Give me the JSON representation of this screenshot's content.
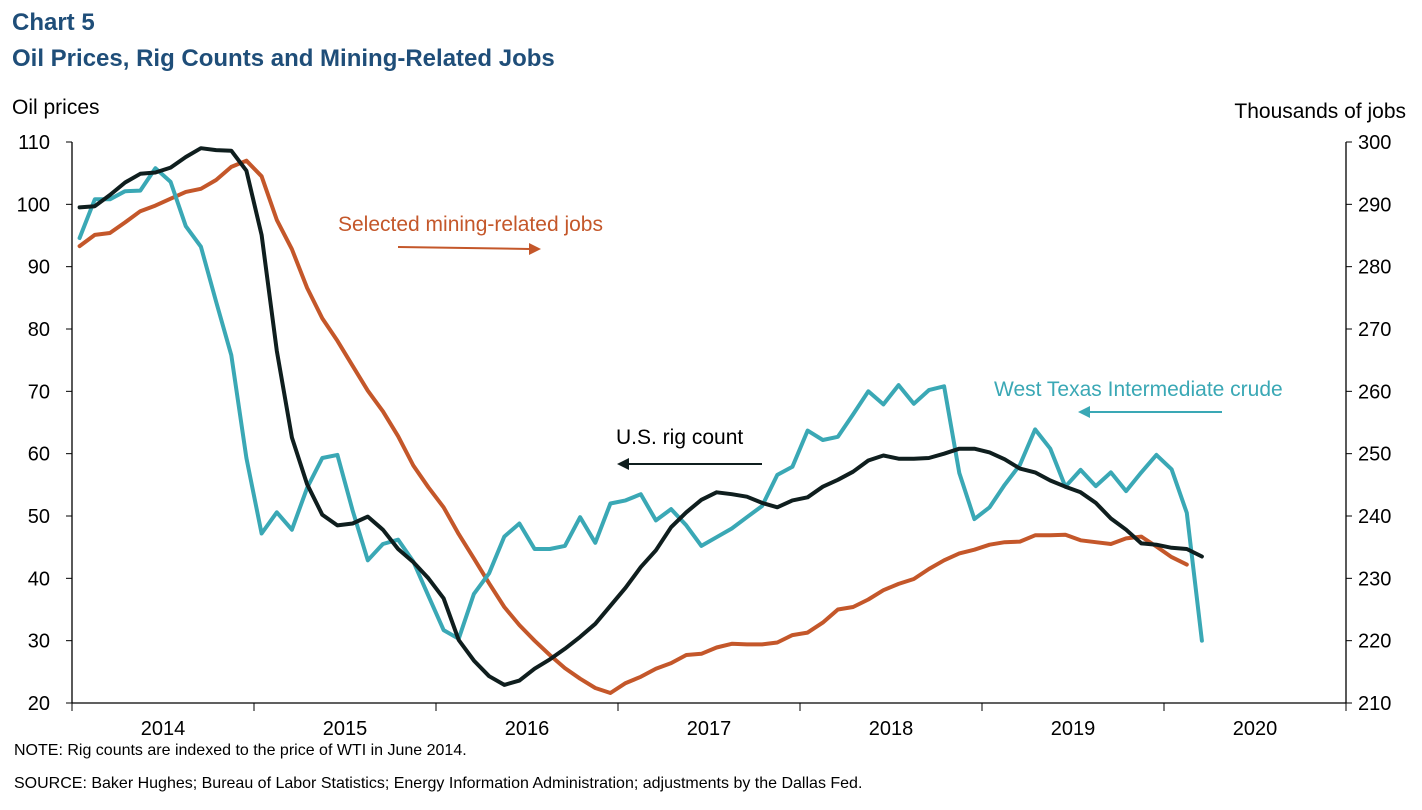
{
  "header": {
    "chart_number": "Chart 5",
    "title": "Oil Prices, Rig Counts and Mining-Related Jobs"
  },
  "footer": {
    "note": "NOTE: Rig counts are indexed to the price of WTI in June 2014.",
    "source": "SOURCE: Baker Hughes; Bureau of Labor Statistics; Energy Information Administration; adjustments by the Dallas Fed."
  },
  "colors": {
    "title": "#1f4e79",
    "wti": "#3aa8b5",
    "rig": "#0f1e1e",
    "jobs": "#c4572a"
  },
  "chart_data": {
    "type": "line",
    "title": "Oil Prices, Rig Counts and Mining-Related Jobs",
    "y_left_label": "Oil prices",
    "y_right_label": "Thousands of jobs",
    "y_left_lim": [
      20,
      110
    ],
    "y_left_ticks": [
      110,
      100,
      90,
      80,
      70,
      60,
      50,
      40,
      30,
      20
    ],
    "y_right_lim": [
      210,
      300
    ],
    "y_right_ticks": [
      300,
      290,
      280,
      270,
      260,
      250,
      240,
      230,
      220,
      210
    ],
    "x_start": "2014-01",
    "x_end": "2020-12",
    "x_ticks": [
      "2014",
      "2015",
      "2016",
      "2017",
      "2018",
      "2019",
      "2020"
    ],
    "grid": false,
    "annotations": {
      "jobs": "Selected mining-related jobs",
      "rig": "U.S. rig count",
      "wti": "West Texas Intermediate crude"
    },
    "series": [
      {
        "key": "wti",
        "name": "West Texas Intermediate crude",
        "axis": "left",
        "start": "2014-01",
        "values": [
          94.6,
          100.8,
          100.8,
          102.1,
          102.2,
          105.8,
          103.6,
          96.5,
          93.2,
          84.4,
          75.8,
          59.3,
          47.2,
          50.6,
          47.8,
          54.5,
          59.3,
          59.8,
          50.9,
          42.9,
          45.5,
          46.2,
          42.7,
          37.2,
          31.7,
          30.3,
          37.5,
          40.8,
          46.7,
          48.8,
          44.7,
          44.7,
          45.2,
          49.8,
          45.7,
          52.0,
          52.5,
          53.5,
          49.3,
          51.1,
          48.5,
          45.2,
          46.6,
          48.0,
          49.8,
          51.6,
          56.6,
          57.9,
          63.7,
          62.2,
          62.7,
          66.3,
          70.0,
          67.9,
          71.0,
          68.0,
          70.2,
          70.8,
          56.9,
          49.5,
          51.4,
          55.0,
          58.2,
          63.9,
          60.8,
          54.7,
          57.4,
          54.8,
          57.0,
          54.0,
          57.0,
          59.8,
          57.5,
          50.5,
          30.0
        ]
      },
      {
        "key": "rig",
        "name": "U.S. rig count",
        "axis": "left",
        "start": "2014-01",
        "values": [
          99.5,
          99.7,
          101.5,
          103.5,
          104.9,
          105.1,
          105.9,
          107.6,
          109.0,
          108.7,
          108.6,
          105.4,
          95.1,
          76.5,
          62.6,
          55.1,
          50.2,
          48.5,
          48.8,
          49.9,
          47.8,
          44.7,
          42.6,
          40.0,
          36.8,
          30.1,
          26.8,
          24.3,
          22.9,
          23.6,
          25.5,
          27.0,
          28.7,
          30.6,
          32.7,
          35.6,
          38.5,
          41.8,
          44.5,
          48.2,
          50.6,
          52.6,
          53.8,
          53.5,
          53.1,
          52.1,
          51.4,
          52.5,
          53.0,
          54.7,
          55.8,
          57.1,
          58.9,
          59.7,
          59.2,
          59.2,
          59.3,
          60.0,
          60.8,
          60.8,
          60.2,
          59.1,
          57.6,
          57.0,
          55.7,
          54.7,
          53.8,
          52.1,
          49.6,
          47.8,
          45.6,
          45.4,
          44.9,
          44.7,
          43.5
        ]
      },
      {
        "key": "jobs",
        "name": "Selected mining-related jobs",
        "axis": "right",
        "start": "2014-01",
        "values": [
          283.3,
          285.1,
          285.4,
          287.1,
          288.9,
          289.8,
          290.9,
          292.0,
          292.5,
          293.9,
          296.0,
          297.0,
          294.5,
          287.5,
          282.8,
          276.6,
          271.7,
          268.1,
          264.1,
          260.1,
          256.8,
          252.8,
          248.1,
          244.6,
          241.4,
          237.1,
          233.2,
          229.2,
          225.4,
          222.5,
          220.0,
          217.7,
          215.6,
          213.9,
          212.4,
          211.6,
          213.2,
          214.2,
          215.5,
          216.4,
          217.7,
          217.9,
          218.9,
          219.5,
          219.4,
          219.4,
          219.7,
          220.9,
          221.3,
          222.9,
          225.0,
          225.4,
          226.6,
          228.1,
          229.1,
          229.9,
          231.5,
          232.9,
          234.0,
          234.6,
          235.4,
          235.8,
          235.9,
          236.9,
          236.9,
          237.0,
          236.1,
          235.8,
          235.5,
          236.4,
          236.7,
          235.1,
          233.4,
          232.2
        ]
      }
    ]
  }
}
